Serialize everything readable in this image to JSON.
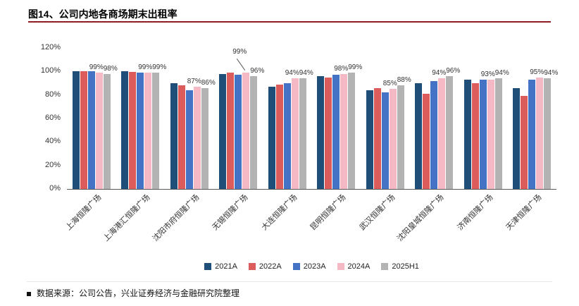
{
  "header": {
    "title": "图14、公司内地各商场期末出租率"
  },
  "footer": {
    "label": "数据来源：",
    "text": "公司公告，兴业证券经济与金融研究院整理"
  },
  "colors": {
    "title_rule": "#8E1D22",
    "axis": "#595959",
    "bar_label": "#333333"
  },
  "chart_data": {
    "type": "bar",
    "title": "图14、公司内地各商场期末出租率",
    "categories": [
      "上海恒隆广场",
      "上海港汇恒隆广场",
      "沈阳市府恒隆广场",
      "无锡恒隆广场",
      "大连恒隆广场",
      "昆明恒隆广场",
      "武汉恒隆广场",
      "沈阳皇城恒隆广场",
      "济南恒隆广场",
      "天津恒隆广场"
    ],
    "series": [
      {
        "name": "2021A",
        "color": "#1F4E79",
        "values": [
          100,
          100,
          90,
          98,
          87,
          96,
          84,
          90,
          93,
          86
        ]
      },
      {
        "name": "2022A",
        "color": "#DC5B5B",
        "values": [
          100,
          99.5,
          88,
          99,
          89,
          95,
          86,
          81,
          90,
          79
        ]
      },
      {
        "name": "2023A",
        "color": "#4472C4",
        "values": [
          100,
          99,
          84,
          97,
          90,
          97,
          82,
          92,
          93,
          93
        ]
      },
      {
        "name": "2024A",
        "color": "#F5B9C5",
        "values": [
          99,
          99,
          87,
          99,
          94,
          98,
          85,
          94,
          93,
          95
        ],
        "labels": [
          "99%",
          "99%",
          "87%",
          "99%",
          "94%",
          "98%",
          "85%",
          "94%",
          "93%",
          "95%"
        ]
      },
      {
        "name": "2025H1",
        "color": "#B3B3B3",
        "values": [
          98,
          99,
          86,
          96,
          94,
          99,
          88,
          96,
          94,
          94
        ],
        "labels": [
          "98%",
          "99%",
          "86%",
          "96%",
          "94%",
          "99%",
          "88%",
          "96%",
          "94%",
          "94%"
        ]
      }
    ],
    "y_axis": {
      "min": 0,
      "max": 120,
      "step": 20,
      "tick_labels": [
        "0%",
        "20%",
        "40%",
        "60%",
        "80%",
        "100%",
        "120%"
      ]
    },
    "legend_position": "bottom",
    "gridlines": false,
    "callout": {
      "category_index": 3,
      "series_index": 3,
      "note": "99% label raised with leader line"
    }
  }
}
